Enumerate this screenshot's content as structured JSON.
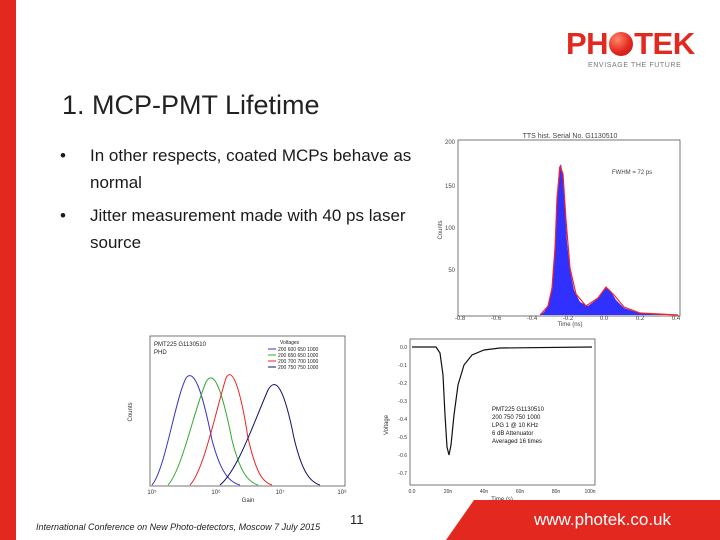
{
  "logo": {
    "word_left": "PH",
    "word_right": "TEK",
    "tagline": "ENVISAGE THE FUTURE"
  },
  "slide": {
    "title": "1. MCP-PMT Lifetime",
    "bullet_symbol": "•",
    "bullets": [
      "In other respects, coated MCPs behave as normal",
      "Jitter measurement made with 40 ps laser source"
    ]
  },
  "tts_plot": {
    "title": "TTS hist. Serial No. G1130510",
    "ylabel": "Counts",
    "xlabel": "Time (ns)",
    "annotation": "FWHM = 72 ps",
    "yticks": [
      "200",
      "150",
      "100",
      "50"
    ],
    "xticks": [
      "-0.8",
      "-0.6",
      "-0.4",
      "-0.2",
      "0.0",
      "0.2",
      "0.4"
    ]
  },
  "phd_plot": {
    "legend_title": "PMT225 G1130510",
    "legend_subtitle": "PHD",
    "voltage_header": "Voltages",
    "voltages": [
      "200 600 650 1000",
      "200 650 650 1000",
      "200 700 700 1000",
      "200 750 750 1000"
    ],
    "ylabel": "Counts",
    "xlabel": "Gain",
    "xticks": [
      "10⁵",
      "10⁶",
      "10⁷",
      "10⁸"
    ]
  },
  "pulse_plot": {
    "ylabel": "Voltage",
    "xlabel": "Time (s)",
    "yticks": [
      "0.0",
      "-0.1",
      "-0.2",
      "-0.3",
      "-0.4",
      "-0.5",
      "-0.6",
      "-0.7"
    ],
    "xticks": [
      "0.0",
      "20n",
      "40n",
      "60n",
      "80n",
      "100n"
    ],
    "info": [
      "PMT225 G1130510",
      "200 750 750 1000",
      "LPG 1 @ 10 KHz",
      "6 dB Attenuator",
      "Averaged 16 times"
    ]
  },
  "footer": {
    "conference": "International Conference on New Photo-detectors, Moscow 7 July 2015",
    "page_number": "11",
    "url": "www.photek.co.uk"
  },
  "colors": {
    "brand_red": "#e3281f",
    "histogram_blue": "#1a1aff",
    "fit_red": "#ff2020"
  }
}
